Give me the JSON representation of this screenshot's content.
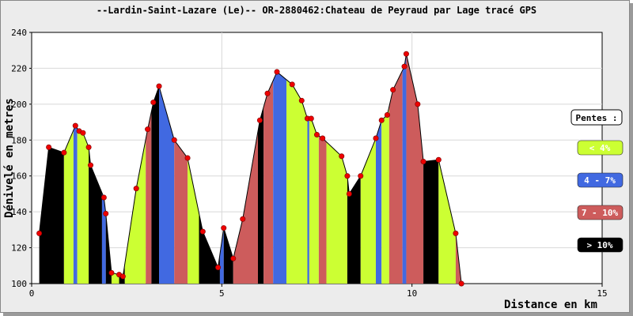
{
  "chart_data": {
    "type": "area",
    "title": "--Lardin-Saint-Lazare (Le)-- OR-2880462:Chateau de Peyraud par Lage tracé GPS",
    "xlabel": "Distance en km",
    "ylabel": "Dénivelé en metres",
    "xlim": [
      0,
      15
    ],
    "ylim": [
      100,
      240
    ],
    "xticks": [
      "0",
      "5",
      "10",
      "15"
    ],
    "yticks": [
      "100",
      "120",
      "140",
      "160",
      "180",
      "200",
      "220",
      "240"
    ],
    "grid": true,
    "colors": {
      "lt4": "#ccff33",
      "4to7": "#4169e1",
      "7to10": "#cd5c5c",
      "gt10": "#000000",
      "point": "#ee0000"
    },
    "legend": {
      "title": "Pentes :",
      "placement": "right",
      "items": [
        {
          "label": "< 4%",
          "category": "lt4"
        },
        {
          "label": "4 - 7%",
          "category": "4to7"
        },
        {
          "label": "7 - 10%",
          "category": "7to10"
        },
        {
          "label": "> 10%",
          "category": "gt10"
        }
      ]
    },
    "points": [
      {
        "x": 0.2,
        "y": 128
      },
      {
        "x": 0.45,
        "y": 176
      },
      {
        "x": 0.85,
        "y": 173
      },
      {
        "x": 1.15,
        "y": 188
      },
      {
        "x": 1.25,
        "y": 185
      },
      {
        "x": 1.35,
        "y": 184
      },
      {
        "x": 1.5,
        "y": 176
      },
      {
        "x": 1.55,
        "y": 166
      },
      {
        "x": 1.9,
        "y": 148
      },
      {
        "x": 1.95,
        "y": 139
      },
      {
        "x": 2.1,
        "y": 106
      },
      {
        "x": 2.3,
        "y": 105
      },
      {
        "x": 2.4,
        "y": 104
      },
      {
        "x": 2.75,
        "y": 153
      },
      {
        "x": 3.05,
        "y": 186
      },
      {
        "x": 3.2,
        "y": 201
      },
      {
        "x": 3.35,
        "y": 210
      },
      {
        "x": 3.75,
        "y": 180
      },
      {
        "x": 4.1,
        "y": 170
      },
      {
        "x": 4.5,
        "y": 129
      },
      {
        "x": 4.9,
        "y": 109
      },
      {
        "x": 5.05,
        "y": 131
      },
      {
        "x": 5.3,
        "y": 114
      },
      {
        "x": 5.55,
        "y": 136
      },
      {
        "x": 6.0,
        "y": 191
      },
      {
        "x": 6.2,
        "y": 206
      },
      {
        "x": 6.45,
        "y": 218
      },
      {
        "x": 6.85,
        "y": 211
      },
      {
        "x": 7.1,
        "y": 202
      },
      {
        "x": 7.25,
        "y": 192
      },
      {
        "x": 7.35,
        "y": 192
      },
      {
        "x": 7.5,
        "y": 183
      },
      {
        "x": 7.65,
        "y": 181
      },
      {
        "x": 8.15,
        "y": 171
      },
      {
        "x": 8.3,
        "y": 160
      },
      {
        "x": 8.35,
        "y": 150
      },
      {
        "x": 8.65,
        "y": 160
      },
      {
        "x": 9.05,
        "y": 181
      },
      {
        "x": 9.2,
        "y": 191
      },
      {
        "x": 9.35,
        "y": 194
      },
      {
        "x": 9.5,
        "y": 208
      },
      {
        "x": 9.8,
        "y": 221
      },
      {
        "x": 9.85,
        "y": 228
      },
      {
        "x": 10.15,
        "y": 200
      },
      {
        "x": 10.3,
        "y": 168
      },
      {
        "x": 10.7,
        "y": 169
      },
      {
        "x": 11.15,
        "y": 128
      },
      {
        "x": 11.3,
        "y": 100
      }
    ],
    "segments": [
      {
        "from": 0.2,
        "to": 0.85,
        "category": "gt10"
      },
      {
        "from": 0.85,
        "to": 1.1,
        "category": "lt4"
      },
      {
        "from": 1.1,
        "to": 1.2,
        "category": "4to7"
      },
      {
        "from": 1.2,
        "to": 1.5,
        "category": "lt4"
      },
      {
        "from": 1.5,
        "to": 1.85,
        "category": "gt10"
      },
      {
        "from": 1.85,
        "to": 1.95,
        "category": "4to7"
      },
      {
        "from": 1.95,
        "to": 2.1,
        "category": "gt10"
      },
      {
        "from": 2.1,
        "to": 2.3,
        "category": "lt4"
      },
      {
        "from": 2.3,
        "to": 2.45,
        "category": "gt10"
      },
      {
        "from": 2.45,
        "to": 3.0,
        "category": "lt4"
      },
      {
        "from": 3.0,
        "to": 3.15,
        "category": "7to10"
      },
      {
        "from": 3.15,
        "to": 3.35,
        "category": "gt10"
      },
      {
        "from": 3.35,
        "to": 3.75,
        "category": "4to7"
      },
      {
        "from": 3.75,
        "to": 4.1,
        "category": "7to10"
      },
      {
        "from": 4.1,
        "to": 4.4,
        "category": "lt4"
      },
      {
        "from": 4.4,
        "to": 4.95,
        "category": "gt10"
      },
      {
        "from": 4.95,
        "to": 5.05,
        "category": "4to7"
      },
      {
        "from": 5.05,
        "to": 5.3,
        "category": "gt10"
      },
      {
        "from": 5.3,
        "to": 5.95,
        "category": "7to10"
      },
      {
        "from": 5.95,
        "to": 6.1,
        "category": "gt10"
      },
      {
        "from": 6.1,
        "to": 6.35,
        "category": "7to10"
      },
      {
        "from": 6.35,
        "to": 6.7,
        "category": "4to7"
      },
      {
        "from": 6.7,
        "to": 7.25,
        "category": "lt4"
      },
      {
        "from": 7.25,
        "to": 7.3,
        "category": "4to7"
      },
      {
        "from": 7.3,
        "to": 7.55,
        "category": "lt4"
      },
      {
        "from": 7.55,
        "to": 7.75,
        "category": "7to10"
      },
      {
        "from": 7.75,
        "to": 8.3,
        "category": "lt4"
      },
      {
        "from": 8.3,
        "to": 8.65,
        "category": "gt10"
      },
      {
        "from": 8.65,
        "to": 9.05,
        "category": "lt4"
      },
      {
        "from": 9.05,
        "to": 9.2,
        "category": "4to7"
      },
      {
        "from": 9.2,
        "to": 9.4,
        "category": "lt4"
      },
      {
        "from": 9.4,
        "to": 9.75,
        "category": "7to10"
      },
      {
        "from": 9.75,
        "to": 9.85,
        "category": "4to7"
      },
      {
        "from": 9.85,
        "to": 10.3,
        "category": "7to10"
      },
      {
        "from": 10.3,
        "to": 10.7,
        "category": "gt10"
      },
      {
        "from": 10.7,
        "to": 11.15,
        "category": "lt4"
      },
      {
        "from": 11.15,
        "to": 11.3,
        "category": "7to10"
      }
    ]
  }
}
